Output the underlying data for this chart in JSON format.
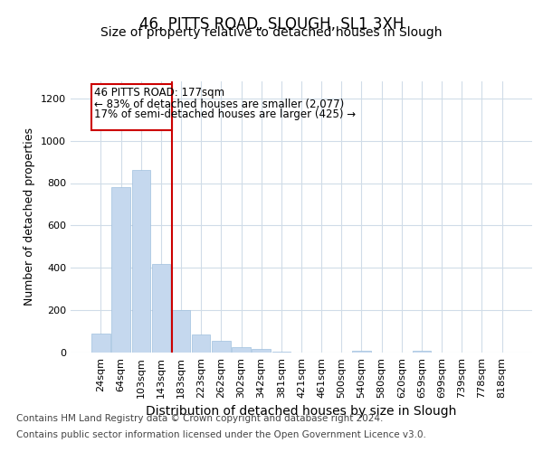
{
  "title": "46, PITTS ROAD, SLOUGH, SL1 3XH",
  "subtitle": "Size of property relative to detached houses in Slough",
  "xlabel": "Distribution of detached houses by size in Slough",
  "ylabel": "Number of detached properties",
  "footnote1": "Contains HM Land Registry data © Crown copyright and database right 2024.",
  "footnote2": "Contains public sector information licensed under the Open Government Licence v3.0.",
  "annotation_line1": "46 PITTS ROAD: 177sqm",
  "annotation_line2": "← 83% of detached houses are smaller (2,077)",
  "annotation_line3": "17% of semi-detached houses are larger (425) →",
  "bar_categories": [
    "24sqm",
    "64sqm",
    "103sqm",
    "143sqm",
    "183sqm",
    "223sqm",
    "262sqm",
    "302sqm",
    "342sqm",
    "381sqm",
    "421sqm",
    "461sqm",
    "500sqm",
    "540sqm",
    "580sqm",
    "620sqm",
    "659sqm",
    "699sqm",
    "739sqm",
    "778sqm",
    "818sqm"
  ],
  "bar_heights": [
    90,
    780,
    860,
    420,
    200,
    85,
    55,
    25,
    15,
    5,
    0,
    0,
    0,
    10,
    0,
    0,
    10,
    0,
    0,
    0,
    0
  ],
  "bar_color": "#c5d8ee",
  "bar_edge_color": "#a0c0de",
  "vline_color": "#cc0000",
  "box_color": "#cc0000",
  "ylim": [
    0,
    1280
  ],
  "yticks": [
    0,
    200,
    400,
    600,
    800,
    1000,
    1200
  ],
  "bg_color": "#ffffff",
  "plot_bg_color": "#ffffff",
  "grid_color": "#d0dce8",
  "title_fontsize": 12,
  "subtitle_fontsize": 10,
  "xlabel_fontsize": 10,
  "ylabel_fontsize": 9,
  "tick_fontsize": 8,
  "footnote_fontsize": 7.5
}
